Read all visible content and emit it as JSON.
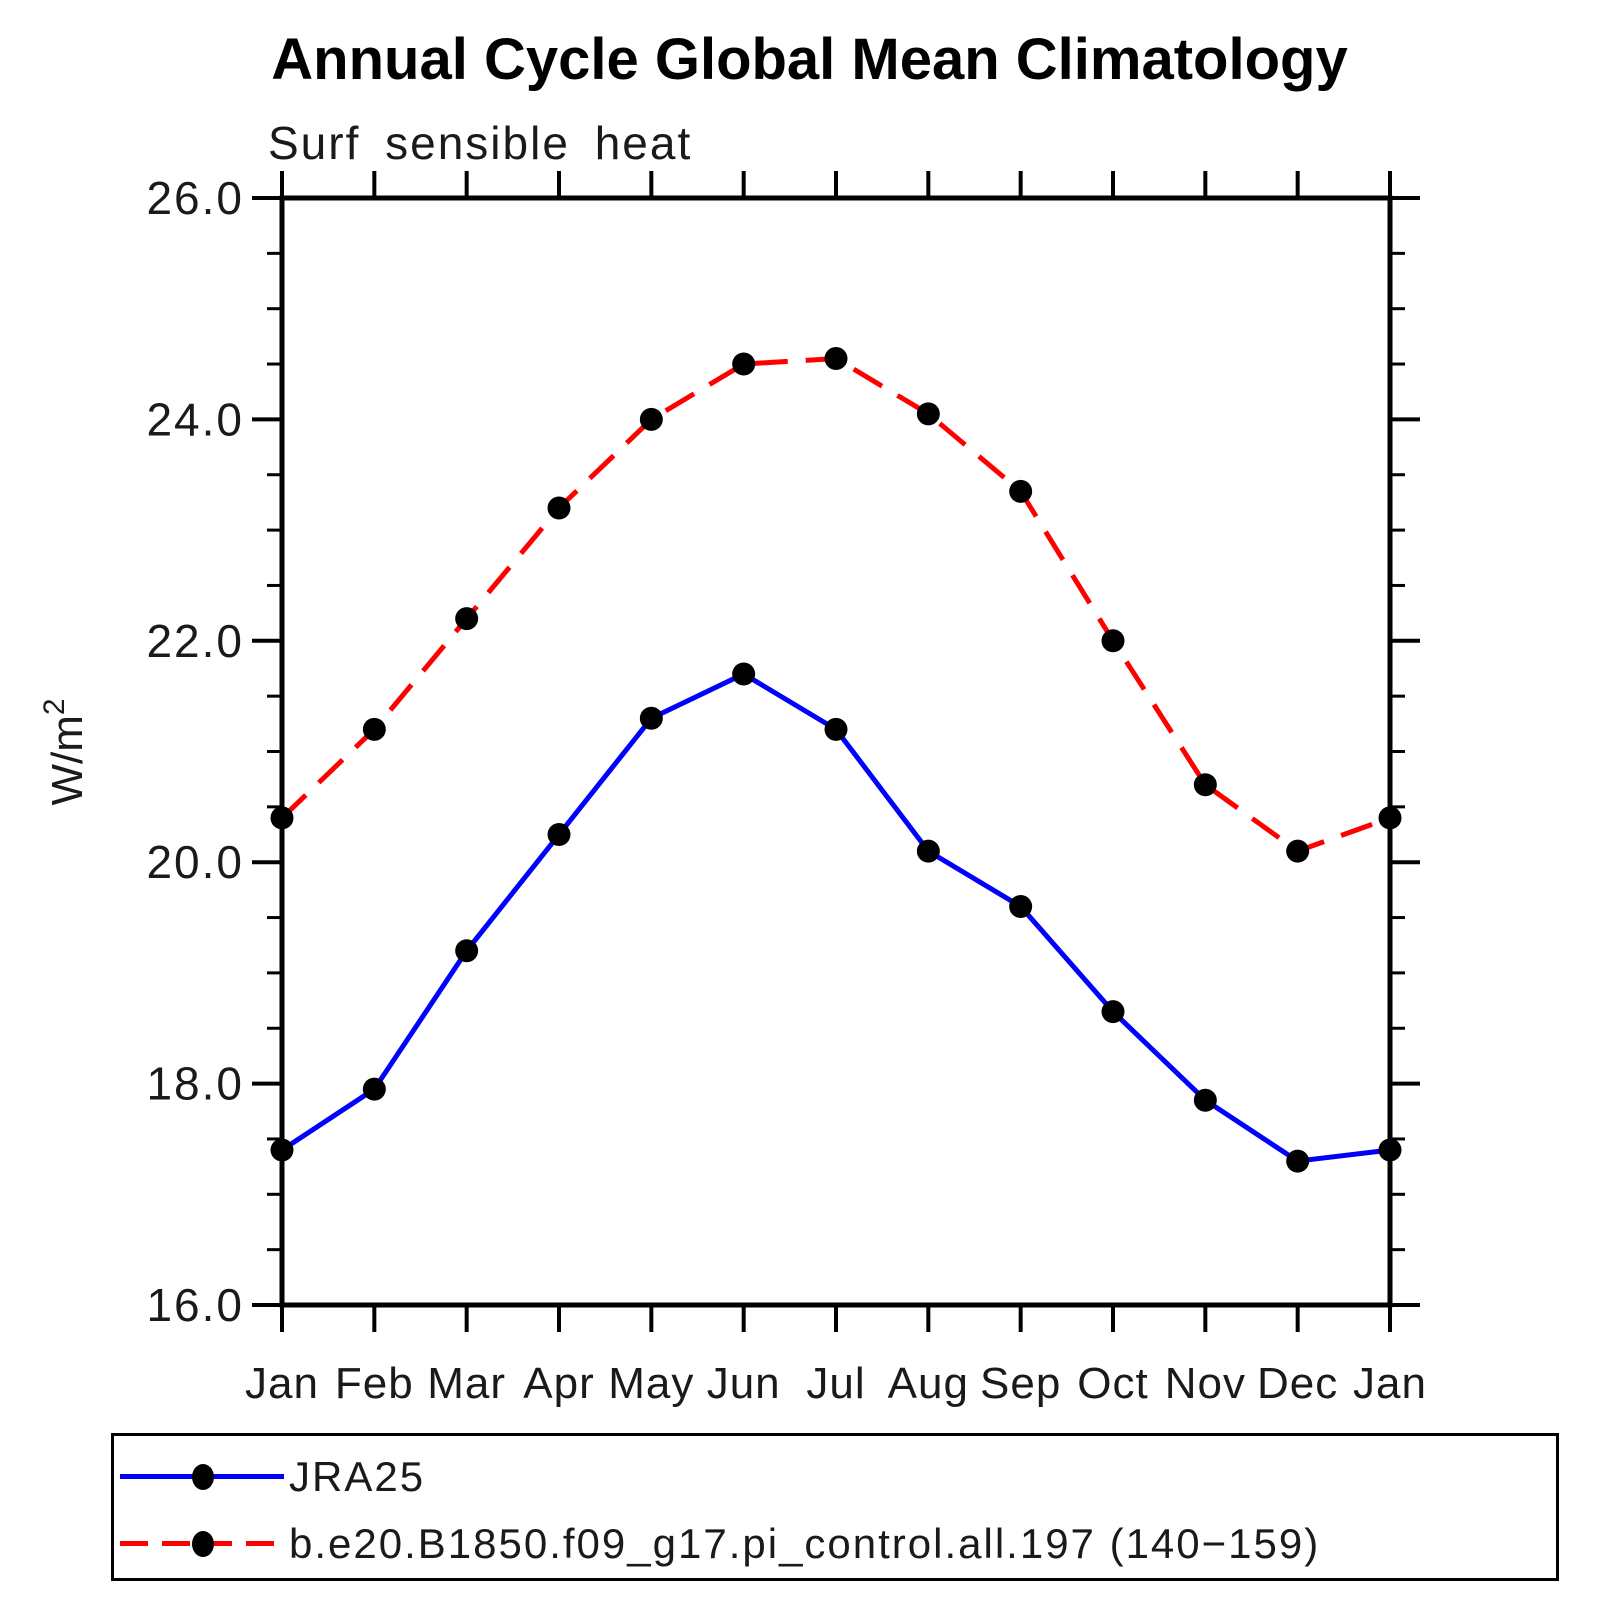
{
  "title": "Annual Cycle Global Mean Climatology",
  "subtitle": "Surf sensible heat",
  "y_axis": {
    "label": "W/m²",
    "label_base": "W/m",
    "label_exp": "2",
    "tick_labels": [
      "26.0",
      "24.0",
      "22.0",
      "20.0",
      "18.0",
      "16.0"
    ]
  },
  "legend": [
    {
      "label": "JRA25",
      "color": "#0000ff",
      "style": "solid",
      "marker": "filled-circle"
    },
    {
      "label": "b.e20.B1850.f09_g17.pi_control.all.197 (140−159)",
      "color": "#ff0000",
      "style": "dashed",
      "marker": "filled-circle"
    }
  ],
  "chart_data": {
    "type": "line",
    "title": "Annual Cycle Global Mean Climatology",
    "subtitle": "Surf sensible heat",
    "xlabel": "",
    "ylabel": "W/m²",
    "ylim": [
      16.0,
      26.0
    ],
    "y_major_tick_step": 2.0,
    "y_minor_tick_step": 0.5,
    "grid": false,
    "legend_position": "bottom-left",
    "categories": [
      "Jan",
      "Feb",
      "Mar",
      "Apr",
      "May",
      "Jun",
      "Jul",
      "Aug",
      "Sep",
      "Oct",
      "Nov",
      "Dec",
      "Jan"
    ],
    "series": [
      {
        "name": "JRA25",
        "color": "#0000ff",
        "line_style": "solid",
        "marker": "filled-circle",
        "marker_color": "#000000",
        "values": [
          17.4,
          17.95,
          19.2,
          20.25,
          21.3,
          21.7,
          21.2,
          20.1,
          19.6,
          18.65,
          17.85,
          17.3,
          17.4
        ]
      },
      {
        "name": "b.e20.B1850.f09_g17.pi_control.all.197 (140−159)",
        "color": "#ff0000",
        "line_style": "dashed",
        "marker": "filled-circle",
        "marker_color": "#000000",
        "values": [
          20.4,
          21.2,
          22.2,
          23.2,
          24.0,
          24.5,
          24.55,
          24.05,
          23.35,
          22.0,
          20.7,
          20.1,
          20.4
        ]
      }
    ]
  }
}
